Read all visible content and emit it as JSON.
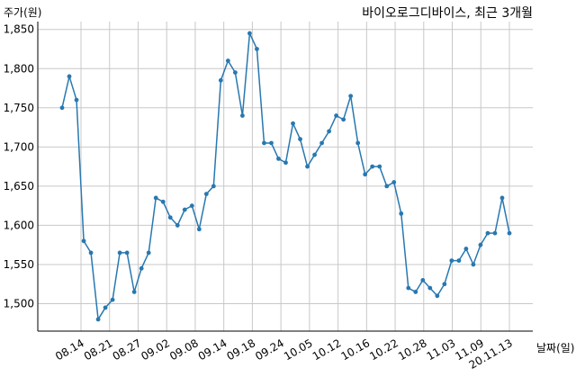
{
  "chart_data": {
    "type": "line",
    "title": "바이오로그디바이스, 최근 3개월",
    "ylabel": "주가(원)",
    "xlabel": "날짜(일)",
    "ylim": [
      1465,
      1860
    ],
    "y_ticks": [
      1500,
      1550,
      1600,
      1650,
      1700,
      1750,
      1800,
      1850
    ],
    "y_tick_labels": [
      "1,500",
      "1,550",
      "1,600",
      "1,650",
      "1,700",
      "1,750",
      "1,800",
      "1,850"
    ],
    "x_tick_labels": [
      "08.14",
      "08.21",
      "08.27",
      "09.02",
      "09.08",
      "09.14",
      "09.18",
      "09.24",
      "10.05",
      "10.12",
      "10.16",
      "10.22",
      "10.28",
      "11.03",
      "11.09",
      "20.11.13"
    ],
    "grid": true,
    "color": "#2878b0",
    "series": [
      {
        "values": [
          1750,
          1790,
          1760,
          1580,
          1565,
          1480,
          1495,
          1505,
          1565,
          1565,
          1515,
          1545,
          1565,
          1635,
          1630,
          1610,
          1600,
          1620,
          1625,
          1595,
          1640,
          1650,
          1785,
          1810,
          1795,
          1740,
          1845,
          1825,
          1705,
          1705,
          1685,
          1680,
          1730,
          1710,
          1675,
          1690,
          1705,
          1720,
          1740,
          1735,
          1765,
          1705,
          1665,
          1675,
          1675,
          1650,
          1655,
          1615,
          1520,
          1515,
          1530,
          1520,
          1510,
          1525,
          1555,
          1555,
          1570,
          1550,
          1575,
          1590,
          1590,
          1635,
          1590
        ]
      }
    ]
  }
}
